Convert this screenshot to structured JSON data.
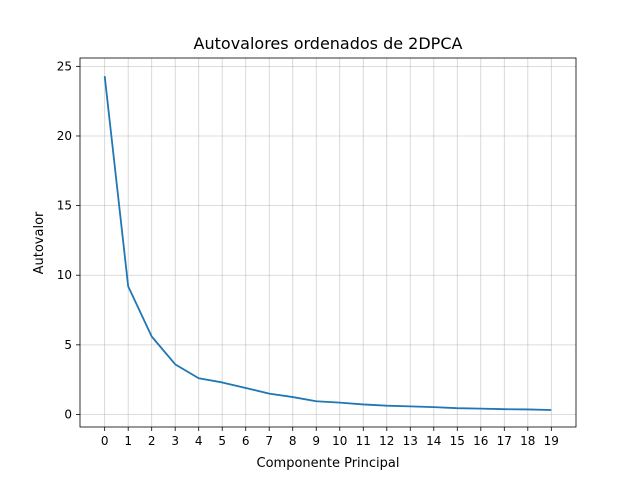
{
  "chart_data": {
    "type": "line",
    "title": "Autovalores ordenados de 2DPCA",
    "xlabel": "Componente Principal",
    "ylabel": "Autovalor",
    "x": [
      0,
      1,
      2,
      3,
      4,
      5,
      6,
      7,
      8,
      9,
      10,
      11,
      12,
      13,
      14,
      15,
      16,
      17,
      18,
      19
    ],
    "x_tick_labels": [
      "0",
      "1",
      "2",
      "3",
      "4",
      "5",
      "6",
      "7",
      "8",
      "9",
      "10",
      "11",
      "12",
      "13",
      "14",
      "15",
      "16",
      "17",
      "18",
      "19"
    ],
    "y_ticks": [
      0,
      5,
      10,
      15,
      20,
      25
    ],
    "y_tick_labels": [
      "0",
      "5",
      "10",
      "15",
      "20",
      "25"
    ],
    "xlim": [
      -1.05,
      20.05
    ],
    "ylim": [
      -0.9,
      25.6
    ],
    "grid": true,
    "series": [
      {
        "color": "#1f77b4",
        "values": [
          24.3,
          9.2,
          5.6,
          3.6,
          2.6,
          2.3,
          1.9,
          1.5,
          1.25,
          0.95,
          0.85,
          0.72,
          0.63,
          0.58,
          0.53,
          0.45,
          0.42,
          0.38,
          0.36,
          0.32
        ]
      }
    ]
  }
}
